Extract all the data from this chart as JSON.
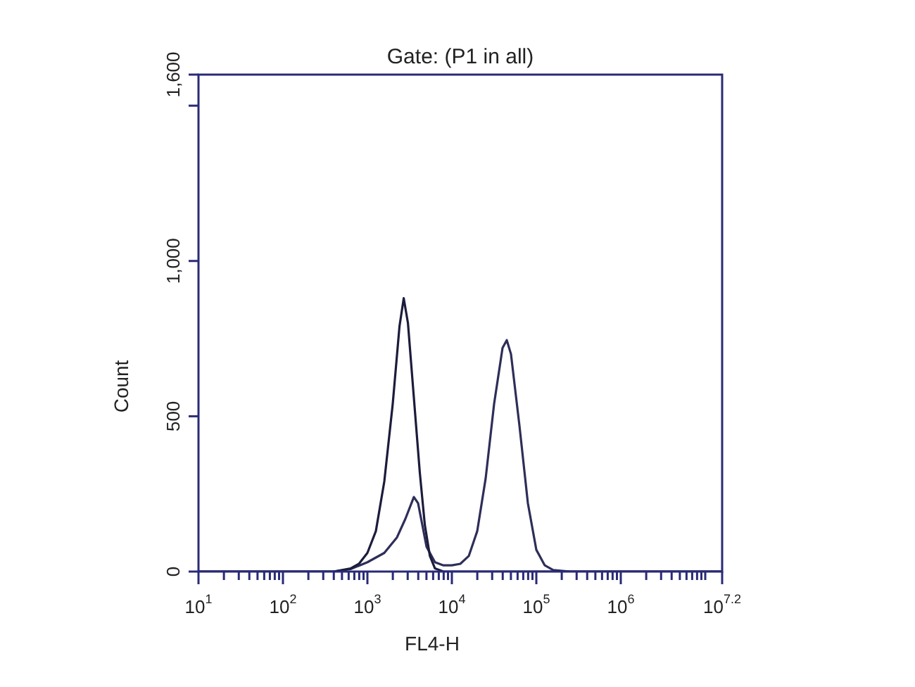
{
  "chart_data": {
    "type": "line",
    "title": "Gate: (P1 in all)",
    "xlabel": "FL4-H",
    "ylabel": "Count",
    "log": "x",
    "xlim": [
      10,
      15848932
    ],
    "ylim": [
      0,
      1600
    ],
    "xticks": [
      {
        "value": 10,
        "label": "10$^{1}$"
      },
      {
        "value": 20,
        "label": null
      },
      {
        "value": 30,
        "label": null
      },
      {
        "value": 40,
        "label": null
      },
      {
        "value": 50,
        "label": null
      },
      {
        "value": 60,
        "label": null
      },
      {
        "value": 70,
        "label": null
      },
      {
        "value": 80,
        "label": null
      },
      {
        "value": 90,
        "label": null
      },
      {
        "value": 100,
        "label": "10$^{2}$"
      },
      {
        "value": 200,
        "label": null
      },
      {
        "value": 300,
        "label": null
      },
      {
        "value": 400,
        "label": null
      },
      {
        "value": 500,
        "label": null
      },
      {
        "value": 600,
        "label": null
      },
      {
        "value": 700,
        "label": null
      },
      {
        "value": 800,
        "label": null
      },
      {
        "value": 900,
        "label": null
      },
      {
        "value": 1000,
        "label": "10$^{3}$"
      },
      {
        "value": 2000,
        "label": null
      },
      {
        "value": 3000,
        "label": null
      },
      {
        "value": 4000,
        "label": null
      },
      {
        "value": 5000,
        "label": null
      },
      {
        "value": 6000,
        "label": null
      },
      {
        "value": 7000,
        "label": null
      },
      {
        "value": 8000,
        "label": null
      },
      {
        "value": 9000,
        "label": null
      },
      {
        "value": 10000,
        "label": "10$^{4}$"
      },
      {
        "value": 20000,
        "label": null
      },
      {
        "value": 30000,
        "label": null
      },
      {
        "value": 40000,
        "label": null
      },
      {
        "value": 50000,
        "label": null
      },
      {
        "value": 60000,
        "label": null
      },
      {
        "value": 70000,
        "label": null
      },
      {
        "value": 80000,
        "label": null
      },
      {
        "value": 90000,
        "label": null
      },
      {
        "value": 100000,
        "label": "10$^{5}$"
      },
      {
        "value": 200000,
        "label": null
      },
      {
        "value": 300000,
        "label": null
      },
      {
        "value": 400000,
        "label": null
      },
      {
        "value": 500000,
        "label": null
      },
      {
        "value": 600000,
        "label": null
      },
      {
        "value": 700000,
        "label": null
      },
      {
        "value": 800000,
        "label": null
      },
      {
        "value": 900000,
        "label": null
      },
      {
        "value": 1000000,
        "label": "10$^{6}$"
      },
      {
        "value": 2000000,
        "label": null
      },
      {
        "value": 3000000,
        "label": null
      },
      {
        "value": 4000000,
        "label": null
      },
      {
        "value": 5000000,
        "label": null
      },
      {
        "value": 6000000,
        "label": null
      },
      {
        "value": 7000000,
        "label": null
      },
      {
        "value": 8000000,
        "label": null
      },
      {
        "value": 9000000,
        "label": null
      },
      {
        "value": 10000000,
        "label": null
      },
      {
        "value": 15848932,
        "label": "10$^{7.2}$"
      }
    ],
    "yticks": [
      0,
      500,
      {
        "value": 1000,
        "label": "1,000"
      },
      {
        "value": 1500,
        "label": null
      },
      {
        "value": 1600,
        "label": "1,600"
      }
    ],
    "grid": false,
    "legend": false,
    "marker": "none",
    "line_style": "solid",
    "series": [
      {
        "color": "#1c1c3c",
        "x": [
          10,
          398,
          631,
          794,
          1000,
          1259,
          1585,
          1995,
          2399,
          2692,
          3020,
          3548,
          4169,
          4786,
          5495,
          6310,
          7943,
          15848932
        ],
        "values": [
          0,
          0,
          10,
          25,
          60,
          130,
          290,
          540,
          790,
          880,
          800,
          560,
          320,
          150,
          50,
          10,
          0,
          0
        ]
      },
      {
        "color": "#2e2e58",
        "x": [
          10,
          398,
          631,
          1000,
          1585,
          2239,
          2818,
          3548,
          3981,
          4467,
          5012,
          6310,
          7943,
          10000,
          12589,
          15849,
          19953,
          25119,
          31623,
          39811,
          44668,
          50119,
          63096,
          79433,
          100000,
          125893,
          158489,
          251189,
          15848932
        ],
        "values": [
          0,
          0,
          8,
          30,
          60,
          110,
          170,
          240,
          220,
          150,
          80,
          30,
          20,
          20,
          25,
          50,
          130,
          300,
          540,
          720,
          745,
          700,
          470,
          220,
          70,
          20,
          5,
          0,
          0
        ]
      }
    ]
  }
}
